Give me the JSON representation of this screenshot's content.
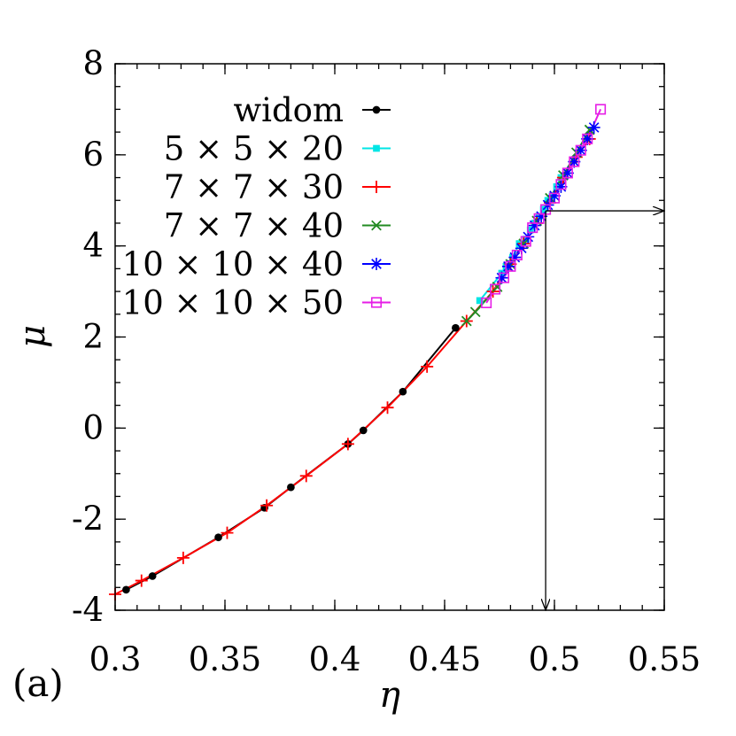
{
  "panel_label": "(a)",
  "chart_data": {
    "type": "line",
    "xlabel": "η",
    "ylabel": "μ",
    "xlim": [
      0.3,
      0.55
    ],
    "ylim": [
      -4,
      8
    ],
    "x_ticks": [
      0.3,
      0.35,
      0.4,
      0.45,
      0.5,
      0.55
    ],
    "x_tick_labels": [
      "0.3",
      "0.35",
      "0.4",
      "0.45",
      "0.5",
      "0.55"
    ],
    "y_ticks": [
      -4,
      -2,
      0,
      2,
      4,
      6,
      8
    ],
    "y_tick_labels": [
      "-4",
      "-2",
      "0",
      "2",
      "4",
      "6",
      "8"
    ],
    "legend_position": "top-left",
    "grid": false,
    "series": [
      {
        "name": "widom",
        "color": "#000000",
        "marker": "filled-circle",
        "x": [
          0.305,
          0.317,
          0.347,
          0.368,
          0.38,
          0.406,
          0.413,
          0.431,
          0.455
        ],
        "y": [
          -3.55,
          -3.25,
          -2.4,
          -1.75,
          -1.3,
          -0.35,
          -0.05,
          0.8,
          2.2
        ]
      },
      {
        "name": "5 × 5 × 20",
        "color": "#00e5e5",
        "marker": "filled-square",
        "x": [
          0.466,
          0.476,
          0.478,
          0.481,
          0.484,
          0.487,
          0.489,
          0.491,
          0.493,
          0.495,
          0.497,
          0.499,
          0.501,
          0.503
        ],
        "y": [
          2.8,
          3.4,
          3.55,
          3.75,
          4.05,
          4.15,
          4.35,
          4.5,
          4.65,
          4.8,
          5.0,
          5.1,
          5.3,
          5.5
        ]
      },
      {
        "name": "7 × 7 × 30",
        "color": "#ff0000",
        "marker": "plus",
        "x": [
          0.3,
          0.312,
          0.331,
          0.351,
          0.369,
          0.387,
          0.406,
          0.424,
          0.442,
          0.46,
          0.472,
          0.48,
          0.486,
          0.492,
          0.498,
          0.504,
          0.51,
          0.516
        ],
        "y": [
          -3.65,
          -3.35,
          -2.85,
          -2.3,
          -1.7,
          -1.05,
          -0.35,
          0.45,
          1.35,
          2.35,
          3.0,
          3.6,
          4.05,
          4.5,
          4.95,
          5.5,
          5.95,
          6.35
        ]
      },
      {
        "name": "7 × 7 × 40",
        "color": "#228b22",
        "marker": "cross",
        "x": [
          0.46,
          0.464,
          0.474,
          0.48,
          0.486,
          0.492,
          0.498,
          0.504,
          0.51,
          0.516
        ],
        "y": [
          2.35,
          2.55,
          3.1,
          3.6,
          4.05,
          4.55,
          5.05,
          5.55,
          6.05,
          6.55
        ]
      },
      {
        "name": "10 × 10 × 40",
        "color": "#0000ff",
        "marker": "asterisk",
        "x": [
          0.476,
          0.479,
          0.482,
          0.485,
          0.488,
          0.491,
          0.494,
          0.497,
          0.5,
          0.503,
          0.506,
          0.509,
          0.512,
          0.515,
          0.518
        ],
        "y": [
          3.3,
          3.55,
          3.75,
          3.95,
          4.2,
          4.45,
          4.65,
          4.9,
          5.1,
          5.3,
          5.6,
          5.85,
          6.1,
          6.35,
          6.6
        ]
      },
      {
        "name": "10 × 10 × 50",
        "color": "#e61ee6",
        "marker": "open-square",
        "x": [
          0.469,
          0.473,
          0.477,
          0.48,
          0.483,
          0.487,
          0.49,
          0.493,
          0.496,
          0.5,
          0.503,
          0.506,
          0.509,
          0.512,
          0.515,
          0.521
        ],
        "y": [
          2.75,
          3.05,
          3.3,
          3.55,
          3.8,
          4.1,
          4.4,
          4.6,
          4.8,
          5.05,
          5.35,
          5.6,
          5.85,
          6.1,
          6.35,
          7.0
        ]
      }
    ],
    "annotation_arrows": [
      {
        "from": [
          0.496,
          4.77
        ],
        "to": [
          0.55,
          4.77
        ]
      },
      {
        "from": [
          0.496,
          4.77
        ],
        "to": [
          0.496,
          -4
        ]
      }
    ]
  }
}
